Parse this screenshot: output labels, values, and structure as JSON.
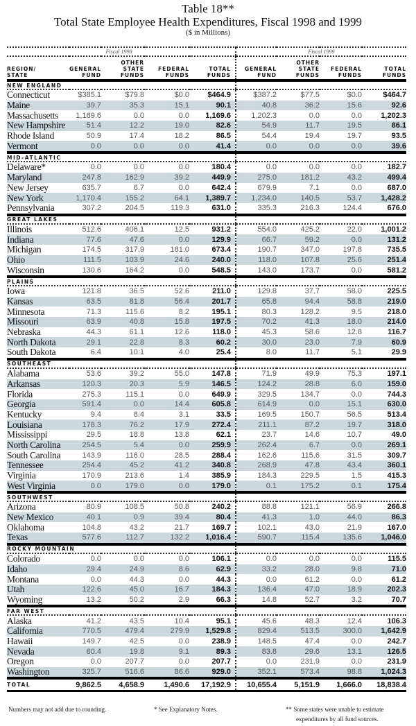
{
  "title": {
    "line1": "Table 18**",
    "line2": "Total State Employee Health Expenditures, Fiscal 1998 and 1999",
    "line3": "($ in Millions)"
  },
  "fiscal_labels": [
    "Fiscal 1998",
    "Fiscal 1999"
  ],
  "headers": {
    "region": [
      "REGION/",
      "STATE"
    ],
    "general": [
      "GENERAL",
      "FUND"
    ],
    "other": [
      "OTHER",
      "STATE",
      "FUNDS"
    ],
    "federal": [
      "FEDERAL",
      "FUNDS"
    ],
    "total": [
      "TOTAL",
      "FUNDS"
    ]
  },
  "regions": [
    {
      "name": "NEW ENGLAND",
      "rows": [
        [
          "Connecticut",
          "$385.1",
          "$79.8",
          "$0.0",
          "$464.9",
          "$387.2",
          "$77.5",
          "$0.0",
          "$464.7"
        ],
        [
          "Maine",
          "39.7",
          "35.3",
          "15.1",
          "90.1",
          "40.8",
          "36.2",
          "15.6",
          "92.6"
        ],
        [
          "Massachusetts",
          "1,169.6",
          "0.0",
          "0.0",
          "1,169.6",
          "1,202.3",
          "0.0",
          "0.0",
          "1,202.3"
        ],
        [
          "New Hampshire",
          "51.4",
          "12.2",
          "19.0",
          "82.6",
          "54.9",
          "11.7",
          "19.5",
          "86.1"
        ],
        [
          "Rhode Island",
          "50.9",
          "17.4",
          "18.2",
          "86.5",
          "54.4",
          "19.4",
          "19.7",
          "93.5"
        ],
        [
          "Vermont",
          "0.0",
          "0.0",
          "0.0",
          "41.4",
          "0.0",
          "0.0",
          "0.0",
          "39.6"
        ]
      ]
    },
    {
      "name": "MID-ATLANTIC",
      "rows": [
        [
          "Delaware*",
          "0.0",
          "0.0",
          "0.0",
          "180.4",
          "0.0",
          "0.0",
          "0.0",
          "182.7"
        ],
        [
          "Maryland",
          "247.8",
          "162.9",
          "39.2",
          "449.9",
          "275.0",
          "181.2",
          "43.2",
          "499.4"
        ],
        [
          "New Jersey",
          "635.7",
          "6.7",
          "0.0",
          "642.4",
          "679.9",
          "7.1",
          "0.0",
          "687.0"
        ],
        [
          "New York",
          "1,170.4",
          "155.2",
          "64.1",
          "1,389.7",
          "1,234.0",
          "140.5",
          "53.7",
          "1,428.2"
        ],
        [
          "Pennsylvania",
          "307.2",
          "204.5",
          "119.3",
          "631.0",
          "335.3",
          "216.3",
          "124.4",
          "676.0"
        ]
      ]
    },
    {
      "name": "GREAT LAKES",
      "rows": [
        [
          "Illinois",
          "512.6",
          "406.1",
          "12.5",
          "931.2",
          "554.0",
          "425.2",
          "22.0",
          "1,001.2"
        ],
        [
          "Indiana",
          "77.6",
          "47.6",
          "0.0",
          "129.9",
          "66.7",
          "59.2",
          "0.0",
          "131.2"
        ],
        [
          "Michigan",
          "174.5",
          "317.9",
          "181.0",
          "673.4",
          "190.7",
          "347.0",
          "197.8",
          "735.5"
        ],
        [
          "Ohio",
          "111.5",
          "103.9",
          "24.6",
          "240.0",
          "118.0",
          "107.8",
          "25.6",
          "251.4"
        ],
        [
          "Wisconsin",
          "130.6",
          "164.2",
          "0.0",
          "548.5",
          "143.0",
          "173.7",
          "0.0",
          "581.2"
        ]
      ]
    },
    {
      "name": "PLAINS",
      "rows": [
        [
          "Iowa",
          "121.8",
          "36.5",
          "52.6",
          "211.0",
          "129.8",
          "37.7",
          "58.0",
          "225.5"
        ],
        [
          "Kansas",
          "63.5",
          "81.8",
          "56.4",
          "201.7",
          "65.8",
          "94.4",
          "58.8",
          "219.0"
        ],
        [
          "Minnesota",
          "71.3",
          "115.6",
          "8.2",
          "195.1",
          "80.3",
          "128.2",
          "9.5",
          "218.0"
        ],
        [
          "Missouri",
          "63.9",
          "40.8",
          "15.8",
          "197.5",
          "70.2",
          "41.3",
          "18.0",
          "214.0"
        ],
        [
          "Nebraska",
          "44.3",
          "61.1",
          "12.6",
          "118.0",
          "45.3",
          "58.6",
          "12.8",
          "116.7"
        ],
        [
          "North Dakota",
          "29.1",
          "22.8",
          "8.3",
          "60.2",
          "30.0",
          "23.0",
          "7.9",
          "60.9"
        ],
        [
          "South Dakota",
          "6.4",
          "10.1",
          "4.0",
          "25.4",
          "8.0",
          "11.7",
          "5.1",
          "29.9"
        ]
      ]
    },
    {
      "name": "SOUTHEAST",
      "rows": [
        [
          "Alabama",
          "53.6",
          "39.2",
          "55.0",
          "147.8",
          "71.9",
          "49.9",
          "75.3",
          "197.1"
        ],
        [
          "Arkansas",
          "120.3",
          "20.3",
          "5.9",
          "146.5",
          "124.2",
          "28.8",
          "6.0",
          "159.0"
        ],
        [
          "Florida",
          "275.3",
          "115.1",
          "0.0",
          "649.9",
          "329.5",
          "134.7",
          "0.0",
          "744.3"
        ],
        [
          "Georgia",
          "591.4",
          "0.0",
          "14.4",
          "605.8",
          "614.9",
          "0.0",
          "15.1",
          "630.0"
        ],
        [
          "Kentucky",
          "9.4",
          "8.4",
          "3.1",
          "33.5",
          "169.5",
          "150.7",
          "56.5",
          "513.4"
        ],
        [
          "Louisiana",
          "178.3",
          "76.2",
          "17.9",
          "272.4",
          "211.1",
          "87.2",
          "19.7",
          "318.0"
        ],
        [
          "Mississippi",
          "29.5",
          "18.8",
          "13.8",
          "62.1",
          "23.7",
          "14.6",
          "10.7",
          "49.0"
        ],
        [
          "North Carolina",
          "254.5",
          "5.4",
          "0.0",
          "259.9",
          "262.4",
          "6.7",
          "0.0",
          "269.1"
        ],
        [
          "South Carolina",
          "143.9",
          "116.0",
          "28.5",
          "288.4",
          "162.6",
          "115.6",
          "31.5",
          "309.7"
        ],
        [
          "Tennessee",
          "254.4",
          "45.2",
          "41.2",
          "340.8",
          "268.9",
          "47.8",
          "43.4",
          "360.1"
        ],
        [
          "Virginia",
          "170.9",
          "213.6",
          "1.4",
          "385.9",
          "184.3",
          "229.5",
          "1.5",
          "415.3"
        ],
        [
          "West Virginia",
          "0.0",
          "179.0",
          "0.0",
          "179.0",
          "0.1",
          "175.2",
          "0.1",
          "175.4"
        ]
      ]
    },
    {
      "name": "SOUTHWEST",
      "rows": [
        [
          "Arizona",
          "80.9",
          "108.5",
          "50.8",
          "240.2",
          "88.8",
          "121.1",
          "56.9",
          "266.8"
        ],
        [
          "New Mexico",
          "40.1",
          "0.9",
          "39.4",
          "80.4",
          "41.3",
          "1.0",
          "44.0",
          "86.3"
        ],
        [
          "Oklahoma",
          "104.8",
          "43.2",
          "21.7",
          "169.7",
          "102.1",
          "43.0",
          "21.9",
          "167.0"
        ],
        [
          "Texas",
          "577.6",
          "112.7",
          "132.2",
          "1,016.4",
          "590.7",
          "115.4",
          "135.6",
          "1,046.0"
        ]
      ]
    },
    {
      "name": "ROCKY MOUNTAIN",
      "rows": [
        [
          "Colorado",
          "0.0",
          "0.0",
          "0.0",
          "106.1",
          "0.0",
          "0.0",
          "0.0",
          "115.5"
        ],
        [
          "Idaho",
          "29.4",
          "24.9",
          "8.6",
          "62.9",
          "33.2",
          "28.0",
          "9.8",
          "71.0"
        ],
        [
          "Montana",
          "0.0",
          "44.3",
          "0.0",
          "44.3",
          "0.0",
          "61.2",
          "0.0",
          "61.2"
        ],
        [
          "Utah",
          "122.6",
          "45.0",
          "16.7",
          "184.3",
          "136.4",
          "47.0",
          "18.9",
          "202.3"
        ],
        [
          "Wyoming",
          "13.2",
          "50.2",
          "2.9",
          "66.3",
          "14.8",
          "52.7",
          "3.2",
          "70.7"
        ]
      ]
    },
    {
      "name": "FAR WEST",
      "rows": [
        [
          "Alaska",
          "41.2",
          "43.5",
          "10.4",
          "95.1",
          "45.6",
          "48.3",
          "12.4",
          "106.3"
        ],
        [
          "California",
          "770.5",
          "479.4",
          "279.9",
          "1,529.8",
          "829.4",
          "513.5",
          "300.0",
          "1,642.9"
        ],
        [
          "Hawaii",
          "149.7",
          "42.5",
          "0.0",
          "238.9",
          "148.5",
          "47.4",
          "0.0",
          "242.7"
        ],
        [
          "Nevada",
          "60.4",
          "19.8",
          "9.1",
          "89.3",
          "83.8",
          "29.6",
          "13.1",
          "126.5"
        ],
        [
          "Oregon",
          "0.0",
          "207.7",
          "0.0",
          "207.7",
          "0.0",
          "231.9",
          "0.0",
          "231.9"
        ],
        [
          "Washington",
          "325.7",
          "516.6",
          "86.6",
          "929.0",
          "352.1",
          "573.4",
          "98.8",
          "1,024.3"
        ]
      ]
    }
  ],
  "total": [
    "TOTAL",
    "9,862.5",
    "4,658.9",
    "1,490.6",
    "17,192.9",
    "10,655.4",
    "5,151.9",
    "1,666.0",
    "18,838.4"
  ],
  "footnotes": {
    "rounding": "Numbers may not add due to rounding.",
    "explanatory": "* See Explanatory Notes.",
    "estimate_line1": "** Some states were unable to estimate",
    "estimate_line2": "expenditures by all fund sources."
  },
  "colors": {
    "row_shade": "#cdd8dc",
    "rule": "#000000"
  }
}
